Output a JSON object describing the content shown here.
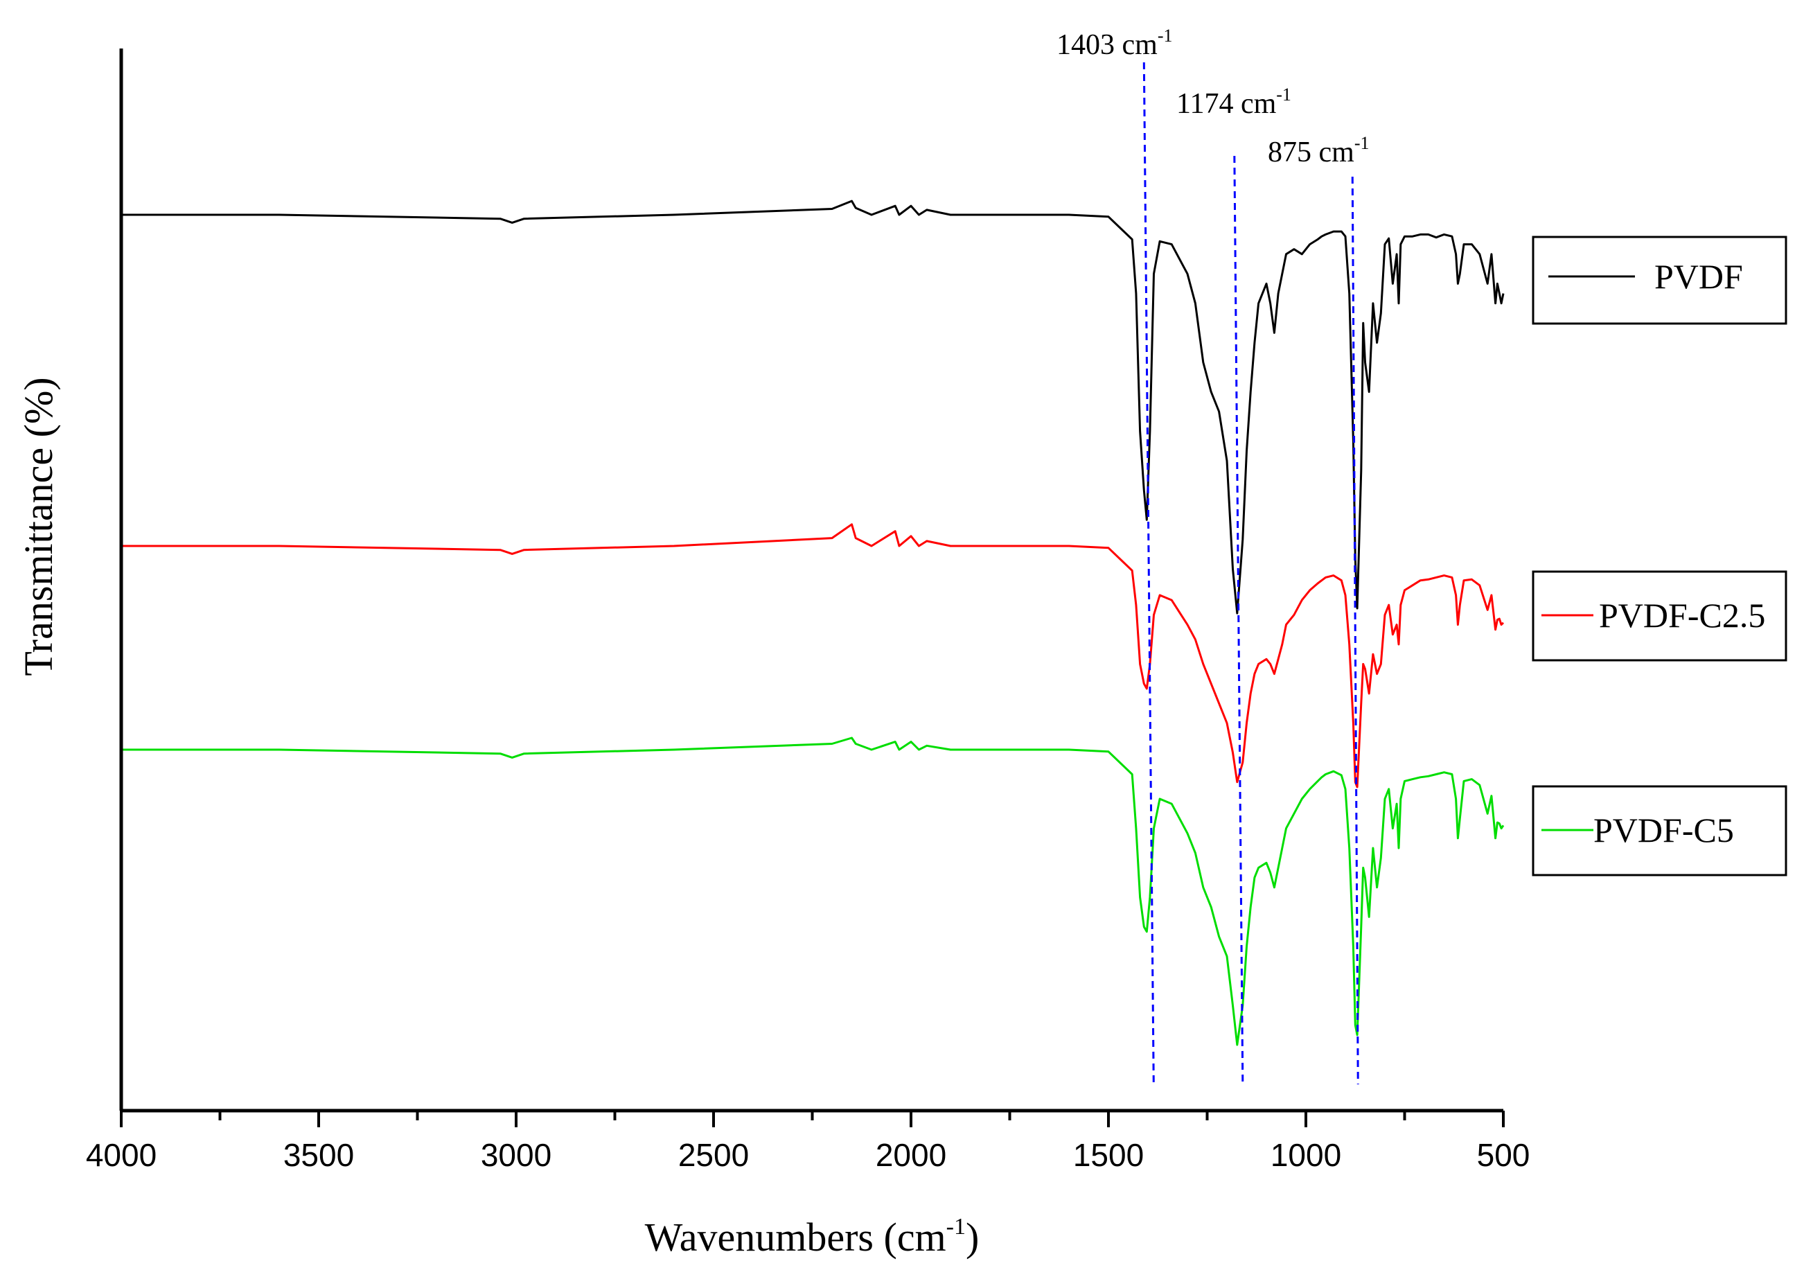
{
  "chart_data": {
    "type": "line",
    "title": "",
    "xlabel": {
      "text": "Wavenumbers (cm",
      "sup": "-1",
      "close": ")"
    },
    "ylabel": "Transmittance (%)",
    "xlim": [
      4000,
      500
    ],
    "x_ticks": [
      "4000",
      "3500",
      "3000",
      "2500",
      "2000",
      "1500",
      "1000",
      "500"
    ],
    "grid": false,
    "legend_position": "right",
    "series": [
      {
        "name": "PVDF",
        "color": "#000000",
        "x": [
          4000,
          3600,
          3040,
          3010,
          2980,
          2600,
          2200,
          2150,
          2140,
          2100,
          2040,
          2030,
          2000,
          1980,
          1960,
          1900,
          1600,
          1500,
          1440,
          1430,
          1420,
          1410,
          1403,
          1395,
          1385,
          1370,
          1340,
          1300,
          1280,
          1260,
          1240,
          1220,
          1200,
          1185,
          1174,
          1160,
          1150,
          1140,
          1130,
          1120,
          1100,
          1090,
          1080,
          1070,
          1060,
          1050,
          1030,
          1010,
          990,
          970,
          960,
          950,
          930,
          910,
          900,
          890,
          880,
          875,
          870,
          860,
          855,
          850,
          840,
          830,
          820,
          810,
          800,
          790,
          780,
          770,
          765,
          760,
          750,
          730,
          710,
          690,
          670,
          650,
          630,
          620,
          615,
          610,
          600,
          580,
          560,
          540,
          530,
          520,
          515,
          510,
          505,
          500
        ],
        "y": [
          100,
          100,
          99.6,
          99.2,
          99.6,
          100,
          100.6,
          101.4,
          100.7,
          100,
          100.9,
          100,
          100.9,
          100,
          100.5,
          100,
          100,
          99.8,
          97.5,
          92,
          78,
          72,
          69,
          78,
          94,
          97.3,
          97,
          94,
          91,
          85,
          82,
          80,
          75,
          64,
          59.5,
          67,
          76,
          82,
          87,
          91,
          93,
          91,
          88,
          92,
          94,
          96,
          96.5,
          96,
          97,
          97.5,
          97.8,
          98,
          98.3,
          98.3,
          97.8,
          92,
          77,
          65,
          60,
          74,
          89,
          85,
          82,
          91,
          87,
          90,
          97,
          97.6,
          93,
          96,
          91,
          97,
          97.8,
          97.8,
          98,
          98,
          97.7,
          98,
          97.8,
          96,
          93,
          94,
          97,
          97,
          96,
          93,
          96,
          91,
          93,
          92,
          91,
          92
        ]
      },
      {
        "name": "PVDF-C2.5",
        "color": "#ff0000",
        "x": [
          4000,
          3600,
          3040,
          3010,
          2980,
          2600,
          2200,
          2150,
          2140,
          2100,
          2040,
          2030,
          2000,
          1980,
          1960,
          1900,
          1600,
          1500,
          1440,
          1430,
          1420,
          1410,
          1403,
          1395,
          1385,
          1370,
          1340,
          1300,
          1280,
          1260,
          1240,
          1220,
          1200,
          1185,
          1174,
          1160,
          1150,
          1140,
          1130,
          1120,
          1100,
          1090,
          1080,
          1070,
          1060,
          1050,
          1030,
          1010,
          990,
          970,
          960,
          950,
          930,
          910,
          900,
          890,
          880,
          875,
          870,
          860,
          855,
          850,
          840,
          830,
          820,
          810,
          800,
          790,
          780,
          770,
          765,
          760,
          750,
          730,
          710,
          690,
          670,
          650,
          630,
          620,
          615,
          610,
          600,
          580,
          560,
          540,
          530,
          520,
          515,
          510,
          505,
          500
        ],
        "y": [
          100,
          100,
          99.6,
          99.2,
          99.6,
          100,
          100.8,
          102.2,
          100.8,
          100,
          101.5,
          100,
          101,
          100,
          100.5,
          100,
          100,
          99.8,
          97.5,
          94,
          88,
          86,
          85.5,
          88,
          93,
          95,
          94.5,
          92,
          90.5,
          88,
          86,
          84,
          82,
          79,
          76,
          78,
          82,
          85,
          87,
          88,
          88.5,
          88,
          87,
          88.5,
          90,
          92,
          93,
          94.5,
          95.5,
          96.2,
          96.5,
          96.8,
          97,
          96.5,
          95,
          90,
          82,
          76,
          75.5,
          84,
          88,
          87.5,
          85,
          89,
          87,
          88,
          93,
          94,
          91,
          92,
          90,
          94,
          95.5,
          96,
          96.5,
          96.6,
          96.8,
          97,
          96.8,
          95,
          92,
          94,
          96.5,
          96.6,
          96,
          93.5,
          95,
          91.5,
          92.5,
          92.6,
          92,
          92.2
        ]
      },
      {
        "name": "PVDF-C5",
        "color": "#00dd00",
        "x": [
          4000,
          3600,
          3040,
          3010,
          2980,
          2600,
          2200,
          2150,
          2140,
          2100,
          2040,
          2030,
          2000,
          1980,
          1960,
          1900,
          1600,
          1500,
          1440,
          1430,
          1420,
          1410,
          1403,
          1395,
          1385,
          1370,
          1340,
          1300,
          1280,
          1260,
          1240,
          1220,
          1200,
          1185,
          1174,
          1160,
          1150,
          1140,
          1130,
          1120,
          1100,
          1090,
          1080,
          1070,
          1060,
          1050,
          1030,
          1010,
          990,
          970,
          960,
          950,
          930,
          910,
          900,
          890,
          880,
          875,
          870,
          860,
          855,
          850,
          840,
          830,
          820,
          810,
          800,
          790,
          780,
          770,
          765,
          760,
          750,
          730,
          710,
          690,
          670,
          650,
          630,
          620,
          615,
          610,
          600,
          580,
          560,
          540,
          530,
          520,
          515,
          510,
          505,
          500
        ],
        "y": [
          100,
          100,
          99.6,
          99.2,
          99.6,
          100,
          100.6,
          101.2,
          100.6,
          100,
          100.8,
          100,
          100.8,
          100,
          100.4,
          100,
          100,
          99.8,
          97.5,
          92,
          85,
          82,
          81.5,
          85,
          92,
          95,
          94.5,
          91.5,
          89.5,
          86,
          84,
          81,
          79,
          74,
          70,
          74,
          80,
          84,
          87,
          88,
          88.5,
          87.5,
          86,
          88,
          90,
          92,
          93.5,
          95,
          96,
          96.8,
          97.2,
          97.5,
          97.8,
          97.4,
          96,
          90,
          80,
          72,
          71,
          82,
          88,
          87,
          83,
          90,
          86,
          89,
          95,
          96,
          92,
          94.5,
          90,
          95,
          96.8,
          97,
          97.2,
          97.3,
          97.5,
          97.7,
          97.5,
          95,
          91,
          93,
          96.8,
          97,
          96.4,
          93.5,
          95.3,
          91,
          92.6,
          92.5,
          92,
          92.3
        ]
      }
    ],
    "annotations": [
      {
        "label": "1403 cm",
        "sup": "-1",
        "x": 1403
      },
      {
        "label": "1174 cm",
        "sup": "-1",
        "x": 1174
      },
      {
        "label": "875 cm",
        "sup": "-1",
        "x": 875
      }
    ],
    "reference_line_color": "#0000ff"
  }
}
